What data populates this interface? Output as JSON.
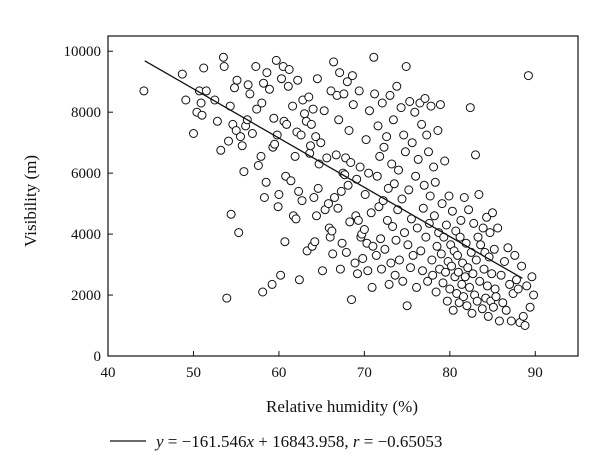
{
  "chart_data": {
    "type": "scatter",
    "xlabel": "Relative humidity (%)",
    "ylabel": "Visibility (m)",
    "xlim": [
      40,
      95
    ],
    "ylim": [
      0,
      10500
    ],
    "x_ticks": [
      40,
      50,
      60,
      70,
      80,
      90
    ],
    "y_ticks": [
      0,
      2000,
      4000,
      6000,
      8000,
      10000
    ],
    "x_tick_labels": [
      "40",
      "50",
      "60",
      "70",
      "80",
      "90"
    ],
    "y_tick_labels": [
      "0",
      "2000",
      "4000",
      "6000",
      "8000",
      "10000"
    ],
    "grid": false,
    "legend_placement": "bottom",
    "regression": {
      "slope": -161.546,
      "intercept": 16843.958,
      "r": -0.65053,
      "x_range": [
        44.3,
        88.5
      ],
      "equation_parts": {
        "y": "y",
        "eq1": " = −161.546",
        "x": "x",
        "eq2": " + 16843.958, ",
        "r": "r",
        "eq3": " = −0.65053"
      }
    },
    "points": [
      [
        44.2,
        8700
      ],
      [
        48.7,
        9250
      ],
      [
        49.1,
        8400
      ],
      [
        50.0,
        7300
      ],
      [
        50.4,
        8000
      ],
      [
        50.7,
        8700
      ],
      [
        50.9,
        8300
      ],
      [
        51.2,
        9450
      ],
      [
        51.5,
        8700
      ],
      [
        51.0,
        7900
      ],
      [
        52.5,
        8400
      ],
      [
        52.8,
        7700
      ],
      [
        53.2,
        6750
      ],
      [
        53.5,
        9800
      ],
      [
        53.6,
        9500
      ],
      [
        53.9,
        1900
      ],
      [
        54.1,
        7050
      ],
      [
        54.3,
        8200
      ],
      [
        54.4,
        4650
      ],
      [
        54.6,
        7600
      ],
      [
        54.8,
        8800
      ],
      [
        55.0,
        7400
      ],
      [
        55.1,
        9050
      ],
      [
        55.3,
        4050
      ],
      [
        55.5,
        7200
      ],
      [
        55.7,
        6900
      ],
      [
        55.9,
        6050
      ],
      [
        56.1,
        7550
      ],
      [
        56.3,
        7750
      ],
      [
        56.4,
        8900
      ],
      [
        56.6,
        8600
      ],
      [
        56.9,
        7300
      ],
      [
        57.3,
        9500
      ],
      [
        57.4,
        8100
      ],
      [
        57.6,
        6250
      ],
      [
        57.9,
        6550
      ],
      [
        58.0,
        8300
      ],
      [
        58.1,
        2100
      ],
      [
        58.2,
        8950
      ],
      [
        58.3,
        5200
      ],
      [
        58.5,
        5700
      ],
      [
        58.6,
        9300
      ],
      [
        58.9,
        8750
      ],
      [
        59.2,
        2350
      ],
      [
        59.3,
        6850
      ],
      [
        59.4,
        7800
      ],
      [
        59.5,
        6950
      ],
      [
        59.7,
        9700
      ],
      [
        59.8,
        7250
      ],
      [
        59.9,
        4900
      ],
      [
        60.0,
        5300
      ],
      [
        60.2,
        2650
      ],
      [
        60.3,
        9100
      ],
      [
        60.5,
        9500
      ],
      [
        60.6,
        7700
      ],
      [
        60.7,
        3750
      ],
      [
        60.8,
        5900
      ],
      [
        60.9,
        7600
      ],
      [
        61.1,
        8850
      ],
      [
        61.2,
        9400
      ],
      [
        61.4,
        5750
      ],
      [
        61.6,
        8200
      ],
      [
        61.7,
        4600
      ],
      [
        61.9,
        6550
      ],
      [
        62.0,
        4500
      ],
      [
        62.1,
        7350
      ],
      [
        62.2,
        9050
      ],
      [
        62.3,
        5400
      ],
      [
        62.4,
        2500
      ],
      [
        62.6,
        7250
      ],
      [
        62.7,
        5100
      ],
      [
        62.8,
        8400
      ],
      [
        63.0,
        7950
      ],
      [
        63.2,
        7700
      ],
      [
        63.3,
        3450
      ],
      [
        63.5,
        8500
      ],
      [
        63.6,
        6650
      ],
      [
        63.7,
        6900
      ],
      [
        63.8,
        7600
      ],
      [
        63.9,
        3600
      ],
      [
        64.0,
        8100
      ],
      [
        64.1,
        5200
      ],
      [
        64.2,
        3750
      ],
      [
        64.3,
        7200
      ],
      [
        64.4,
        4600
      ],
      [
        64.5,
        9100
      ],
      [
        64.6,
        5500
      ],
      [
        64.7,
        6300
      ],
      [
        64.9,
        7000
      ],
      [
        65.1,
        2800
      ],
      [
        65.3,
        8050
      ],
      [
        65.4,
        4800
      ],
      [
        65.6,
        6500
      ],
      [
        65.8,
        5000
      ],
      [
        65.9,
        4200
      ],
      [
        66.0,
        3900
      ],
      [
        66.1,
        8700
      ],
      [
        66.2,
        4100
      ],
      [
        66.3,
        3350
      ],
      [
        66.4,
        9650
      ],
      [
        66.5,
        5200
      ],
      [
        66.7,
        6600
      ],
      [
        66.8,
        8550
      ],
      [
        66.9,
        4850
      ],
      [
        67.0,
        7750
      ],
      [
        67.1,
        9300
      ],
      [
        67.2,
        2850
      ],
      [
        67.3,
        5400
      ],
      [
        67.4,
        3700
      ],
      [
        67.5,
        6000
      ],
      [
        67.6,
        8600
      ],
      [
        67.7,
        5950
      ],
      [
        67.8,
        6500
      ],
      [
        67.9,
        3400
      ],
      [
        68.0,
        9000
      ],
      [
        68.1,
        5600
      ],
      [
        68.2,
        7400
      ],
      [
        68.3,
        4400
      ],
      [
        68.4,
        6350
      ],
      [
        68.5,
        1850
      ],
      [
        68.6,
        9200
      ],
      [
        68.7,
        8250
      ],
      [
        68.9,
        3050
      ],
      [
        69.0,
        4600
      ],
      [
        69.1,
        5800
      ],
      [
        69.2,
        2700
      ],
      [
        69.3,
        4450
      ],
      [
        69.4,
        8700
      ],
      [
        69.5,
        6200
      ],
      [
        69.6,
        3900
      ],
      [
        69.7,
        4000
      ],
      [
        69.8,
        3200
      ],
      [
        70.0,
        4150
      ],
      [
        70.1,
        5300
      ],
      [
        70.2,
        7100
      ],
      [
        70.3,
        3700
      ],
      [
        70.4,
        2800
      ],
      [
        70.5,
        6000
      ],
      [
        70.6,
        8050
      ],
      [
        70.8,
        4700
      ],
      [
        70.9,
        2250
      ],
      [
        71.0,
        3600
      ],
      [
        71.1,
        9800
      ],
      [
        71.2,
        8600
      ],
      [
        71.4,
        3300
      ],
      [
        71.5,
        5900
      ],
      [
        71.6,
        7550
      ],
      [
        71.7,
        4900
      ],
      [
        71.8,
        6550
      ],
      [
        71.9,
        3850
      ],
      [
        72.0,
        2850
      ],
      [
        72.1,
        8300
      ],
      [
        72.2,
        5100
      ],
      [
        72.3,
        6850
      ],
      [
        72.4,
        3500
      ],
      [
        72.6,
        7200
      ],
      [
        72.7,
        4450
      ],
      [
        72.8,
        5500
      ],
      [
        72.9,
        2350
      ],
      [
        73.0,
        8550
      ],
      [
        73.1,
        3050
      ],
      [
        73.2,
        6300
      ],
      [
        73.3,
        4250
      ],
      [
        73.4,
        7750
      ],
      [
        73.5,
        5650
      ],
      [
        73.6,
        2650
      ],
      [
        73.7,
        3800
      ],
      [
        73.8,
        8850
      ],
      [
        73.9,
        4800
      ],
      [
        74.0,
        6100
      ],
      [
        74.1,
        3150
      ],
      [
        74.3,
        8150
      ],
      [
        74.4,
        5150
      ],
      [
        74.5,
        2450
      ],
      [
        74.6,
        7250
      ],
      [
        74.7,
        4050
      ],
      [
        74.8,
        6700
      ],
      [
        74.9,
        9500
      ],
      [
        75.0,
        1650
      ],
      [
        75.1,
        3650
      ],
      [
        75.2,
        5450
      ],
      [
        75.3,
        8350
      ],
      [
        75.4,
        2900
      ],
      [
        75.5,
        4500
      ],
      [
        75.6,
        7000
      ],
      [
        75.7,
        3300
      ],
      [
        75.9,
        8000
      ],
      [
        76.0,
        5900
      ],
      [
        76.1,
        2250
      ],
      [
        76.2,
        4200
      ],
      [
        76.3,
        6450
      ],
      [
        76.5,
        8300
      ],
      [
        76.6,
        3450
      ],
      [
        76.7,
        7600
      ],
      [
        76.8,
        2800
      ],
      [
        76.9,
        4850
      ],
      [
        77.0,
        5600
      ],
      [
        77.1,
        8450
      ],
      [
        77.2,
        3900
      ],
      [
        77.3,
        7250
      ],
      [
        77.4,
        2450
      ],
      [
        77.5,
        6700
      ],
      [
        77.6,
        4350
      ],
      [
        77.7,
        5250
      ],
      [
        77.8,
        8200
      ],
      [
        77.9,
        3150
      ],
      [
        78.0,
        2650
      ],
      [
        78.1,
        6200
      ],
      [
        78.2,
        4600
      ],
      [
        78.3,
        5700
      ],
      [
        78.4,
        2100
      ],
      [
        78.5,
        3600
      ],
      [
        78.6,
        7400
      ],
      [
        78.7,
        4050
      ],
      [
        78.8,
        2850
      ],
      [
        78.9,
        8250
      ],
      [
        79.0,
        3350
      ],
      [
        79.1,
        5000
      ],
      [
        79.2,
        2400
      ],
      [
        79.3,
        3900
      ],
      [
        79.4,
        6400
      ],
      [
        79.5,
        2750
      ],
      [
        79.6,
        4300
      ],
      [
        79.7,
        1800
      ],
      [
        79.8,
        3100
      ],
      [
        79.9,
        5250
      ],
      [
        80.0,
        2200
      ],
      [
        80.1,
        3650
      ],
      [
        80.2,
        2950
      ],
      [
        80.3,
        4750
      ],
      [
        80.4,
        1500
      ],
      [
        80.5,
        3450
      ],
      [
        80.6,
        2600
      ],
      [
        80.7,
        4100
      ],
      [
        80.8,
        2050
      ],
      [
        80.9,
        3300
      ],
      [
        81.0,
        2750
      ],
      [
        81.1,
        1750
      ],
      [
        81.2,
        3900
      ],
      [
        81.3,
        4450
      ],
      [
        81.4,
        2350
      ],
      [
        81.5,
        3050
      ],
      [
        81.6,
        1950
      ],
      [
        81.7,
        5200
      ],
      [
        81.8,
        2600
      ],
      [
        81.9,
        3700
      ],
      [
        82.0,
        1650
      ],
      [
        82.1,
        2900
      ],
      [
        82.2,
        4800
      ],
      [
        82.3,
        2250
      ],
      [
        82.4,
        8150
      ],
      [
        82.5,
        3400
      ],
      [
        82.6,
        1400
      ],
      [
        82.7,
        2700
      ],
      [
        82.8,
        4350
      ],
      [
        82.9,
        2000
      ],
      [
        83.0,
        6600
      ],
      [
        83.1,
        3150
      ],
      [
        83.2,
        1800
      ],
      [
        83.3,
        3900
      ],
      [
        83.4,
        5300
      ],
      [
        83.5,
        2450
      ],
      [
        83.6,
        3650
      ],
      [
        83.8,
        1550
      ],
      [
        83.9,
        4200
      ],
      [
        84.0,
        2850
      ],
      [
        84.1,
        3400
      ],
      [
        84.2,
        1900
      ],
      [
        84.3,
        4550
      ],
      [
        84.4,
        2300
      ],
      [
        84.5,
        1300
      ],
      [
        84.6,
        3250
      ],
      [
        84.7,
        4050
      ],
      [
        84.8,
        1800
      ],
      [
        84.9,
        2700
      ],
      [
        85.0,
        4700
      ],
      [
        85.1,
        1600
      ],
      [
        85.2,
        3500
      ],
      [
        85.3,
        2200
      ],
      [
        85.4,
        1950
      ],
      [
        85.6,
        4200
      ],
      [
        85.8,
        1150
      ],
      [
        86.0,
        2650
      ],
      [
        86.2,
        1750
      ],
      [
        86.4,
        3100
      ],
      [
        86.6,
        1500
      ],
      [
        86.8,
        3550
      ],
      [
        87.0,
        2350
      ],
      [
        87.2,
        1150
      ],
      [
        87.4,
        2050
      ],
      [
        87.6,
        3300
      ],
      [
        87.8,
        2500
      ],
      [
        88.0,
        2200
      ],
      [
        88.2,
        1100
      ],
      [
        88.4,
        2950
      ],
      [
        88.6,
        1300
      ],
      [
        88.8,
        1000
      ],
      [
        89.0,
        2300
      ],
      [
        89.2,
        9200
      ],
      [
        89.4,
        1600
      ],
      [
        89.6,
        2600
      ],
      [
        89.8,
        2000
      ]
    ]
  }
}
